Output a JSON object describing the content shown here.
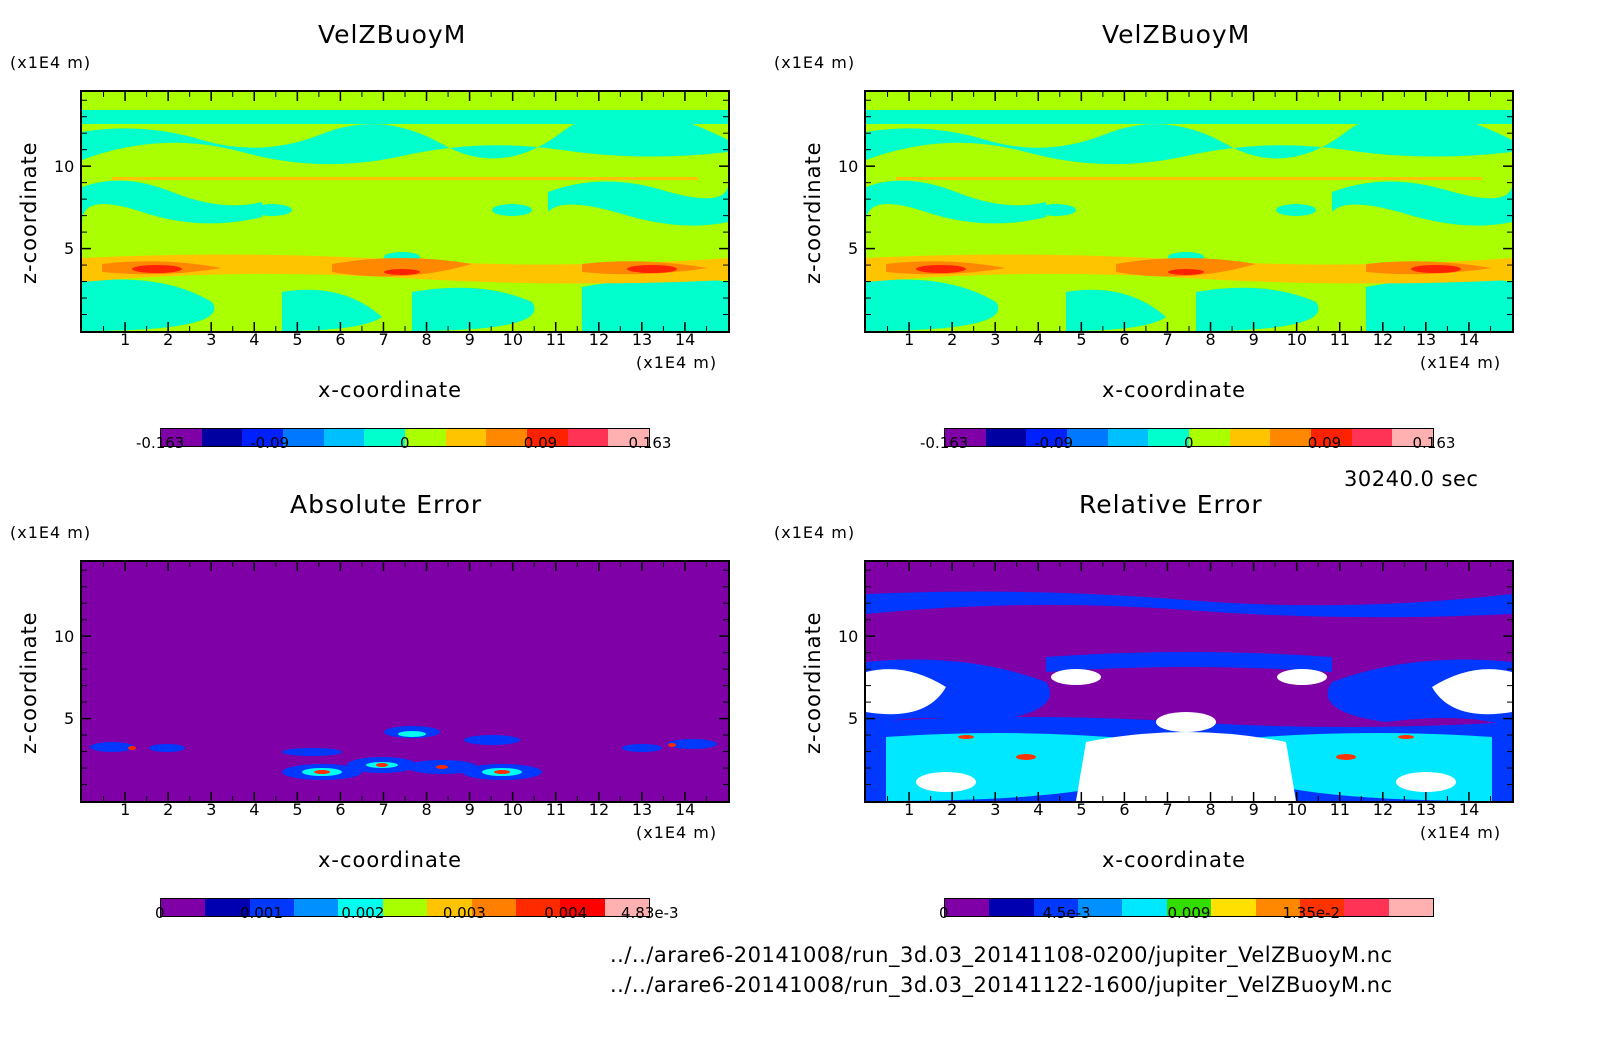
{
  "colors": {
    "frame": "#000000",
    "velocity_levels": [
      "#7F00A6",
      "#0000A0",
      "#0020FF",
      "#0078FF",
      "#00BFFF",
      "#00FFCC",
      "#AAFF00",
      "#FFC400",
      "#FF8800",
      "#FF2200",
      "#FF3355",
      "#FFB0B0"
    ],
    "error_levels": [
      "#7F00A6",
      "#0000B0",
      "#0038FF",
      "#0090FF",
      "#00FFF0",
      "#A8FF00",
      "#FFC400",
      "#FF8000",
      "#FF2A00",
      "#FF0000",
      "#FFB0B0"
    ],
    "relative_levels": [
      "#7F00A6",
      "#0000B0",
      "#0038FF",
      "#0090FF",
      "#00E8FF",
      "#33DD00",
      "#FFE000",
      "#FF8800",
      "#FF3300",
      "#FF3355",
      "#FFB0B0"
    ]
  },
  "annotations": {
    "time": "30240.0 sec",
    "file1": "../../arare6-20141008/run_3d.03_20141108-0200/jupiter_VelZBuoyM.nc",
    "file2": "../../arare6-20141008/run_3d.03_20141122-1600/jupiter_VelZBuoyM.nc"
  },
  "chart_data": [
    {
      "type": "heatmap",
      "title": "VelZBuoyM",
      "xlabel": "x-coordinate",
      "ylabel": "z-coordinate",
      "x_unit": "(x1E4 m)",
      "y_unit": "(x1E4 m)",
      "xlim": [
        0,
        15
      ],
      "ylim": [
        0,
        14.5
      ],
      "xticks": [
        "1",
        "2",
        "3",
        "4",
        "5",
        "6",
        "7",
        "8",
        "9",
        "10",
        "11",
        "12",
        "13",
        "14"
      ],
      "yticks": [
        "5",
        "10"
      ],
      "colorbar_ticks": [
        "-0.163",
        "-0.09",
        "0",
        "0.09",
        "0.163"
      ],
      "colorbar_range": [
        -0.163,
        0.163
      ],
      "palette": "velocity"
    },
    {
      "type": "heatmap",
      "title": "VelZBuoyM",
      "xlabel": "x-coordinate",
      "ylabel": "z-coordinate",
      "x_unit": "(x1E4 m)",
      "y_unit": "(x1E4 m)",
      "xlim": [
        0,
        15
      ],
      "ylim": [
        0,
        14.5
      ],
      "xticks": [
        "1",
        "2",
        "3",
        "4",
        "5",
        "6",
        "7",
        "8",
        "9",
        "10",
        "11",
        "12",
        "13",
        "14"
      ],
      "yticks": [
        "5",
        "10"
      ],
      "colorbar_ticks": [
        "-0.163",
        "-0.09",
        "0",
        "0.09",
        "0.163"
      ],
      "colorbar_range": [
        -0.163,
        0.163
      ],
      "palette": "velocity"
    },
    {
      "type": "heatmap",
      "title": "Absolute Error",
      "xlabel": "x-coordinate",
      "ylabel": "z-coordinate",
      "x_unit": "(x1E4 m)",
      "y_unit": "(x1E4 m)",
      "xlim": [
        0,
        15
      ],
      "ylim": [
        0,
        14.5
      ],
      "xticks": [
        "1",
        "2",
        "3",
        "4",
        "5",
        "6",
        "7",
        "8",
        "9",
        "10",
        "11",
        "12",
        "13",
        "14"
      ],
      "yticks": [
        "5",
        "10"
      ],
      "colorbar_ticks": [
        "0",
        "0.001",
        "0.002",
        "0.003",
        "0.004",
        "4.83e-3"
      ],
      "colorbar_range": [
        0,
        0.00483
      ],
      "palette": "error"
    },
    {
      "type": "heatmap",
      "title": "Relative Error",
      "xlabel": "x-coordinate",
      "ylabel": "z-coordinate",
      "x_unit": "(x1E4 m)",
      "y_unit": "(x1E4 m)",
      "xlim": [
        0,
        15
      ],
      "ylim": [
        0,
        14.5
      ],
      "xticks": [
        "1",
        "2",
        "3",
        "4",
        "5",
        "6",
        "7",
        "8",
        "9",
        "10",
        "11",
        "12",
        "13",
        "14"
      ],
      "yticks": [
        "5",
        "10"
      ],
      "colorbar_ticks": [
        "0",
        "4.5e-3",
        "0.009",
        "1.35e-2"
      ],
      "colorbar_range": [
        0,
        0.018
      ],
      "palette": "relative"
    }
  ]
}
